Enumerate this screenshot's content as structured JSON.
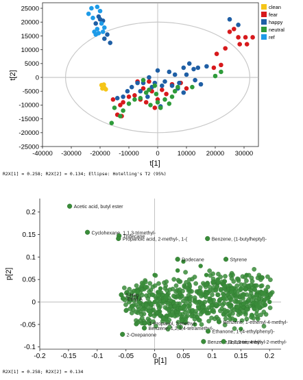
{
  "chart_data": [
    {
      "type": "scatter",
      "subtype": "pca-scores",
      "xlabel": "t[1]",
      "ylabel": "t[2]",
      "xlim": [
        -40000,
        35000
      ],
      "ylim": [
        -25000,
        27000
      ],
      "xticks": [
        -40000,
        -30000,
        -20000,
        -10000,
        0,
        10000,
        20000,
        30000
      ],
      "yticks": [
        -25000,
        -20000,
        -15000,
        -10000,
        -5000,
        0,
        5000,
        10000,
        15000,
        20000,
        25000
      ],
      "ellipse": {
        "center": [
          0,
          0
        ],
        "radii": [
          32000,
          20000
        ]
      },
      "legend_position": "right",
      "caption": "R2X[1] = 0.258; R2X[2] = 0.134; Ellipse: Hotelling's T2 (95%)",
      "series": [
        {
          "name": "clean",
          "color": "#F5C518",
          "points": [
            [
              -19500,
              -2800
            ],
            [
              -19000,
              -3300
            ],
            [
              -18500,
              -3800
            ],
            [
              -18000,
              -4300
            ],
            [
              -19200,
              -4000
            ],
            [
              -18700,
              -2600
            ]
          ]
        },
        {
          "name": "fear",
          "color": "#D7191C",
          "points": [
            [
              -15500,
              -8000
            ],
            [
              -13000,
              -10000
            ],
            [
              -12000,
              -9000
            ],
            [
              -10000,
              -7000
            ],
            [
              -8000,
              -6500
            ],
            [
              -6000,
              -8000
            ],
            [
              -5000,
              -4000
            ],
            [
              -4000,
              -9000
            ],
            [
              -2000,
              -5000
            ],
            [
              0,
              -8000
            ],
            [
              1500,
              -4500
            ],
            [
              3000,
              -6000
            ],
            [
              5000,
              -2500
            ],
            [
              8000,
              -2000
            ],
            [
              10000,
              -4000
            ],
            [
              -3000,
              -1500
            ],
            [
              -14000,
              -13500
            ],
            [
              -12500,
              -14000
            ],
            [
              -7000,
              -1500
            ],
            [
              -1000,
              -11000
            ],
            [
              19500,
              3500
            ],
            [
              22000,
              4500
            ],
            [
              20500,
              8500
            ],
            [
              23500,
              10500
            ],
            [
              25000,
              16500
            ],
            [
              26500,
              17500
            ],
            [
              28000,
              14500
            ],
            [
              30500,
              14500
            ],
            [
              28500,
              12000
            ],
            [
              31000,
              12000
            ],
            [
              33000,
              14500
            ]
          ]
        },
        {
          "name": "happy",
          "color": "#1F5FA5",
          "points": [
            [
              -21500,
              19500
            ],
            [
              -20500,
              22000
            ],
            [
              -20000,
              21000
            ],
            [
              -19000,
              20500
            ],
            [
              -18500,
              14000
            ],
            [
              -17500,
              15500
            ],
            [
              -16500,
              12500
            ],
            [
              -14000,
              -7500
            ],
            [
              -12000,
              -7000
            ],
            [
              -10500,
              -5000
            ],
            [
              -9000,
              -3500
            ],
            [
              -7000,
              -2000
            ],
            [
              -5000,
              -2000
            ],
            [
              -3000,
              0
            ],
            [
              -2000,
              -3500
            ],
            [
              -1000,
              -2000
            ],
            [
              0,
              2500
            ],
            [
              1500,
              -3000
            ],
            [
              2500,
              -1500
            ],
            [
              4000,
              2000
            ],
            [
              5000,
              -3000
            ],
            [
              6000,
              1000
            ],
            [
              7500,
              -2000
            ],
            [
              9000,
              3500
            ],
            [
              10000,
              1000
            ],
            [
              11000,
              5000
            ],
            [
              12500,
              3000
            ],
            [
              13000,
              -1000
            ],
            [
              14000,
              3500
            ],
            [
              15000,
              -2500
            ],
            [
              9000,
              -5500
            ],
            [
              7000,
              -4000
            ],
            [
              17000,
              4000
            ],
            [
              -6000,
              -5000
            ],
            [
              -3500,
              -7000
            ],
            [
              1000,
              -10500
            ],
            [
              25000,
              21000
            ],
            [
              28000,
              19000
            ]
          ]
        },
        {
          "name": "neutral",
          "color": "#2E9B3A",
          "points": [
            [
              -15000,
              -11000
            ],
            [
              -12000,
              -12000
            ],
            [
              -10000,
              -9500
            ],
            [
              -8000,
              -8000
            ],
            [
              -6000,
              -7500
            ],
            [
              -4000,
              -5500
            ],
            [
              -2500,
              -10000
            ],
            [
              0,
              -9000
            ],
            [
              1000,
              -11000
            ],
            [
              2500,
              -8000
            ],
            [
              4000,
              -9500
            ],
            [
              5000,
              -7000
            ],
            [
              6000,
              -5000
            ],
            [
              -1000,
              -3000
            ],
            [
              7000,
              -3500
            ],
            [
              -5000,
              -1000
            ],
            [
              -3000,
              -4500
            ],
            [
              -500,
              -6000
            ],
            [
              12000,
              -3500
            ],
            [
              20000,
              500
            ],
            [
              22000,
              2000
            ],
            [
              -16000,
              -16500
            ],
            [
              -13000,
              -14000
            ]
          ]
        },
        {
          "name": "ref",
          "color": "#1E9BE8",
          "points": [
            [
              -24000,
              23000
            ],
            [
              -23000,
              25000
            ],
            [
              -21000,
              25500
            ],
            [
              -22500,
              21500
            ],
            [
              -20000,
              24000
            ],
            [
              -21000,
              17500
            ],
            [
              -19500,
              19500
            ],
            [
              -18500,
              18000
            ],
            [
              -22000,
              16500
            ],
            [
              -20500,
              16000
            ],
            [
              -19000,
              16500
            ],
            [
              -21500,
              15500
            ]
          ]
        }
      ]
    },
    {
      "type": "scatter",
      "subtype": "pca-loadings",
      "xlabel": "p[1]",
      "ylabel": "p[2]",
      "xlim": [
        -0.2,
        0.22
      ],
      "ylim": [
        -0.105,
        0.23
      ],
      "xticks": [
        -0.2,
        -0.15,
        -0.1,
        -0.05,
        0,
        0.05,
        0.1,
        0.15,
        0.2
      ],
      "yticks": [
        -0.1,
        -0.05,
        0,
        0.05,
        0.1,
        0.15,
        0.2
      ],
      "color": "#3A8C3A",
      "caption": "R2X[1] = 0.258; R2X[2] = 0.134",
      "labeled_points": [
        {
          "label": "Acetic acid, butyl ester",
          "x": -0.148,
          "y": 0.213
        },
        {
          "label": "Cyclohexane, 1,1,3-trimethyl-",
          "x": -0.117,
          "y": 0.155
        },
        {
          "label": "Tridecane",
          "x": -0.062,
          "y": 0.147
        },
        {
          "label": "Propanoic acid, 2-methyl-, 1-(",
          "x": -0.063,
          "y": 0.141
        },
        {
          "label": "Benzene, (1-butylheptyl)-",
          "x": 0.092,
          "y": 0.141
        },
        {
          "label": "Styrene",
          "x": 0.124,
          "y": 0.095
        },
        {
          "label": "2-Hep",
          "x": -0.058,
          "y": 0.016
        },
        {
          "label": "Ethyl A",
          "x": -0.055,
          "y": 0.008
        },
        {
          "label": "1-Propanol, 2-methyl-",
          "x": -0.017,
          "y": -0.047
        },
        {
          "label": "Benzene, 1,2,3,4-tetramethyl-",
          "x": -0.018,
          "y": -0.058
        },
        {
          "label": "2-Oxepanone",
          "x": -0.056,
          "y": -0.072
        },
        {
          "label": "Benzene, 1,2,3-trimethyl-",
          "x": 0.085,
          "y": -0.088
        },
        {
          "label": "Ethanone, 1-(4-ethylphenyl)-",
          "x": 0.093,
          "y": -0.065
        },
        {
          "label": "Benzene, 4-ethyl-2-methyl-",
          "x": 0.12,
          "y": -0.088
        },
        {
          "label": "Benzene, 1-ethenyl-4-methyl-",
          "x": 0.112,
          "y": -0.044
        },
        {
          "label": "Dodecane",
          "x": 0.04,
          "y": 0.095
        }
      ],
      "cloud_points": [
        [
          0.0,
          0.0
        ],
        [
          0.02,
          0.01
        ],
        [
          0.05,
          -0.01
        ],
        [
          -0.03,
          0.02
        ],
        [
          0.08,
          0.02
        ],
        [
          0.1,
          -0.02
        ],
        [
          0.12,
          0.01
        ],
        [
          0.15,
          0.03
        ],
        [
          0.18,
          -0.01
        ],
        [
          0.06,
          0.04
        ],
        [
          0.03,
          -0.03
        ],
        [
          -0.01,
          -0.02
        ],
        [
          0.09,
          0.06
        ],
        [
          0.14,
          -0.04
        ],
        [
          -0.04,
          -0.01
        ],
        [
          0.11,
          0.05
        ],
        [
          0.07,
          -0.05
        ],
        [
          0.04,
          0.07
        ],
        [
          0.16,
          0.06
        ],
        [
          0.02,
          -0.04
        ],
        [
          0.13,
          -0.03
        ],
        [
          0.19,
          0.02
        ],
        [
          -0.02,
          0.04
        ],
        [
          0.17,
          -0.03
        ],
        [
          0.0,
          0.06
        ],
        [
          0.05,
          0.09
        ],
        [
          0.08,
          0.08
        ],
        [
          0.01,
          0.03
        ],
        [
          0.15,
          -0.06
        ],
        [
          0.2,
          0.0
        ]
      ]
    }
  ],
  "colors": {
    "axis": "#222222",
    "grid_line": "#b0b0b0",
    "ellipse": "#c8c8c8"
  }
}
